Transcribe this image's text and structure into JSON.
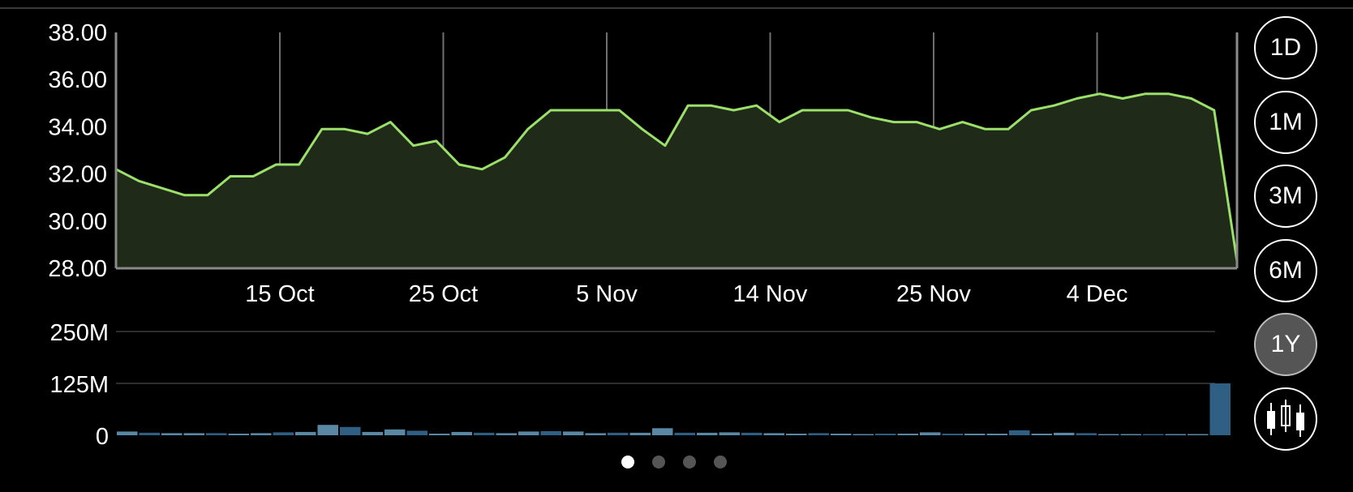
{
  "range_buttons": [
    {
      "label": "1D",
      "active": false
    },
    {
      "label": "1M",
      "active": false
    },
    {
      "label": "3M",
      "active": false
    },
    {
      "label": "6M",
      "active": false
    },
    {
      "label": "1Y",
      "active": true
    }
  ],
  "chart_type_button": {
    "icon": "candlestick-icon"
  },
  "pager": {
    "count": 4,
    "active": 0
  },
  "colors": {
    "price_line": "#9be06a",
    "price_fill": "#1f2a18",
    "volume_bar": "#5a87a3",
    "volume_bar_dark": "#2f5f83",
    "grid": "#2e2e2e",
    "axis": "#8a8a8a"
  },
  "chart_data": [
    {
      "type": "area",
      "x_tick_labels": [
        "15 Oct",
        "25 Oct",
        "5 Nov",
        "14 Nov",
        "25 Nov",
        "4 Dec"
      ],
      "y_tick_labels": [
        "38.00",
        "36.00",
        "34.00",
        "32.00",
        "30.00",
        "28.00"
      ],
      "ylim": [
        28,
        38
      ],
      "series": [
        {
          "values": [
            32.2,
            31.7,
            31.4,
            31.1,
            31.1,
            31.9,
            31.9,
            32.4,
            32.4,
            33.9,
            33.9,
            33.7,
            34.2,
            33.2,
            33.4,
            32.4,
            32.2,
            32.7,
            33.9,
            34.7,
            34.7,
            34.7,
            34.7,
            33.9,
            33.2,
            34.9,
            34.9,
            34.7,
            34.9,
            34.2,
            34.7,
            34.7,
            34.7,
            34.4,
            34.2,
            34.2,
            33.9,
            34.2,
            33.9,
            33.9,
            34.7,
            34.9,
            35.2,
            35.4,
            35.2,
            35.4,
            35.4,
            35.2,
            34.7,
            28.3
          ]
        }
      ],
      "grid": false
    },
    {
      "type": "bar",
      "y_tick_labels": [
        "250M",
        "125M",
        "0"
      ],
      "ylim": [
        0,
        250
      ],
      "series": [
        {
          "values": [
            9,
            6,
            5,
            5,
            5,
            4,
            5,
            7,
            8,
            25,
            20,
            8,
            14,
            11,
            4,
            8,
            6,
            5,
            9,
            10,
            9,
            5,
            6,
            6,
            17,
            6,
            6,
            7,
            6,
            5,
            4,
            5,
            4,
            3,
            4,
            4,
            7,
            4,
            4,
            4,
            12,
            4,
            6,
            5,
            3,
            3,
            3,
            3,
            3,
            125
          ]
        }
      ],
      "grid": true
    }
  ]
}
